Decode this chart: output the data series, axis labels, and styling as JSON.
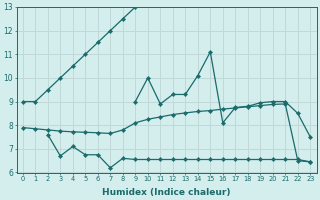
{
  "xlabel": "Humidex (Indice chaleur)",
  "background_color": "#d4eded",
  "grid_color": "#c0d8d8",
  "line_color": "#1a6b6b",
  "xlim": [
    -0.5,
    23.5
  ],
  "ylim": [
    6,
    13
  ],
  "xticks": [
    0,
    1,
    2,
    3,
    4,
    5,
    6,
    7,
    8,
    9,
    10,
    11,
    12,
    13,
    14,
    15,
    16,
    17,
    18,
    19,
    20,
    21,
    22,
    23
  ],
  "yticks": [
    6,
    7,
    8,
    9,
    10,
    11,
    12,
    13
  ],
  "series1_x": [
    0,
    1,
    2,
    3,
    4,
    5,
    6,
    7,
    8,
    9
  ],
  "series1_y": [
    9,
    9,
    9.5,
    10.0,
    10.5,
    11.0,
    11.5,
    12.0,
    12.5,
    13.0
  ],
  "series2_x": [
    0,
    1,
    2,
    3,
    4,
    5,
    6,
    7,
    8,
    9,
    10,
    11,
    12,
    13,
    14,
    15,
    16,
    17,
    18,
    19,
    20,
    21,
    22,
    23
  ],
  "series2_y": [
    7.9,
    7.85,
    7.8,
    7.75,
    7.72,
    7.7,
    7.68,
    7.65,
    7.8,
    8.1,
    8.25,
    8.35,
    8.45,
    8.52,
    8.58,
    8.62,
    8.68,
    8.73,
    8.78,
    8.83,
    8.88,
    8.9,
    6.5,
    6.45
  ],
  "series3_x": [
    2,
    3,
    4,
    5,
    6,
    7,
    8,
    9,
    10,
    11,
    12,
    13,
    14,
    15,
    16,
    17,
    18,
    19,
    20,
    21,
    22,
    23
  ],
  "series3_y": [
    7.6,
    6.7,
    7.1,
    6.75,
    6.75,
    6.2,
    6.6,
    6.55,
    6.55,
    6.55,
    6.55,
    6.55,
    6.55,
    6.55,
    6.55,
    6.55,
    6.55,
    6.55,
    6.55,
    6.55,
    6.55,
    6.45
  ],
  "series4_x": [
    9,
    10,
    11,
    12,
    13,
    14,
    15,
    16,
    17,
    18,
    19,
    20,
    21,
    22,
    23
  ],
  "series4_y": [
    9.0,
    10.0,
    8.9,
    9.3,
    9.3,
    10.1,
    11.1,
    8.1,
    8.75,
    8.8,
    8.95,
    9.0,
    9.0,
    8.5,
    7.5
  ]
}
